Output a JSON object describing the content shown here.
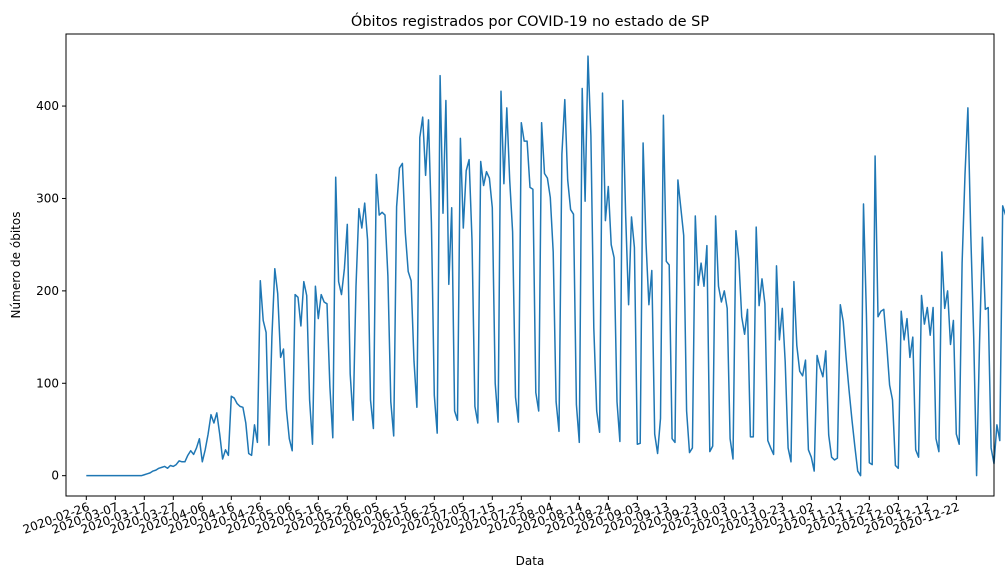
{
  "chart_data": {
    "type": "line",
    "title": "Óbitos registrados por COVID-19 no estado de SP",
    "xlabel": "Data",
    "ylabel": "Número de óbitos",
    "x_start": "2020-02-26",
    "x_end": "2020-12-28",
    "xlim": [
      "2020-02-19",
      "2021-01-04"
    ],
    "ylim": [
      -22,
      478
    ],
    "grid": false,
    "line_color": "#1f77b4",
    "y_ticks": [
      0,
      100,
      200,
      300,
      400
    ],
    "x_tick_labels": [
      "2020-02-26",
      "2020-03-07",
      "2020-03-17",
      "2020-03-27",
      "2020-04-06",
      "2020-04-16",
      "2020-04-26",
      "2020-05-06",
      "2020-05-16",
      "2020-05-26",
      "2020-06-05",
      "2020-06-15",
      "2020-06-25",
      "2020-07-05",
      "2020-07-15",
      "2020-07-25",
      "2020-08-04",
      "2020-08-14",
      "2020-08-24",
      "2020-09-03",
      "2020-09-13",
      "2020-09-23",
      "2020-10-03",
      "2020-10-13",
      "2020-10-23",
      "2020-11-02",
      "2020-11-12",
      "2020-11-22",
      "2020-12-02",
      "2020-12-12",
      "2020-12-22"
    ],
    "series": [
      {
        "values": [
          0,
          0,
          0,
          0,
          0,
          0,
          0,
          0,
          0,
          0,
          0,
          0,
          0,
          0,
          0,
          0,
          0,
          0,
          0,
          0,
          1,
          2,
          3,
          5,
          6,
          8,
          9,
          10,
          8,
          11,
          10,
          12,
          16,
          15,
          15,
          22,
          27,
          23,
          30,
          40,
          15,
          28,
          45,
          66,
          57,
          68,
          45,
          18,
          28,
          22,
          86,
          84,
          78,
          75,
          74,
          57,
          24,
          22,
          55,
          36,
          211,
          168,
          155,
          33,
          150,
          224,
          197,
          128,
          137,
          72,
          40,
          27,
          196,
          193,
          162,
          210,
          195,
          82,
          34,
          205,
          170,
          196,
          188,
          186,
          96,
          41,
          323,
          210,
          196,
          224,
          272,
          110,
          60,
          205,
          289,
          268,
          295,
          255,
          82,
          51,
          326,
          282,
          285,
          282,
          216,
          80,
          43,
          291,
          333,
          338,
          263,
          221,
          211,
          124,
          74,
          366,
          388,
          325,
          385,
          274,
          87,
          46,
          433,
          284,
          406,
          207,
          290,
          70,
          60,
          365,
          268,
          330,
          342,
          255,
          75,
          57,
          340,
          314,
          329,
          322,
          290,
          100,
          58,
          416,
          316,
          398,
          320,
          264,
          85,
          58,
          382,
          362,
          362,
          312,
          310,
          90,
          70,
          382,
          327,
          322,
          301,
          242,
          80,
          48,
          348,
          407,
          320,
          288,
          283,
          77,
          36,
          419,
          297,
          454,
          368,
          160,
          70,
          47,
          414,
          276,
          313,
          250,
          236,
          80,
          37,
          406,
          280,
          185,
          280,
          247,
          34,
          35,
          360,
          252,
          185,
          222,
          45,
          24,
          62,
          390,
          232,
          228,
          40,
          36,
          320,
          290,
          260,
          70,
          25,
          30,
          281,
          206,
          230,
          205,
          249,
          26,
          32,
          281,
          205,
          188,
          200,
          181,
          40,
          18,
          265,
          234,
          172,
          153,
          180,
          42,
          42,
          269,
          184,
          213,
          186,
          38,
          30,
          23,
          227,
          147,
          181,
          123,
          30,
          15,
          210,
          141,
          113,
          108,
          125,
          28,
          20,
          5,
          130,
          117,
          107,
          135,
          44,
          20,
          17,
          19,
          185,
          167,
          128,
          93,
          61,
          32,
          5,
          0,
          294,
          175,
          14,
          12,
          346,
          172,
          178,
          180,
          142,
          98,
          82,
          11,
          8,
          178,
          147,
          170,
          128,
          150,
          28,
          20,
          195,
          164,
          182,
          152,
          182,
          40,
          26,
          242,
          181,
          200,
          142,
          168,
          45,
          34,
          230,
          326,
          398,
          260,
          150,
          0,
          142,
          258,
          180,
          182,
          30,
          13,
          55,
          38,
          292,
          282
        ]
      }
    ]
  }
}
